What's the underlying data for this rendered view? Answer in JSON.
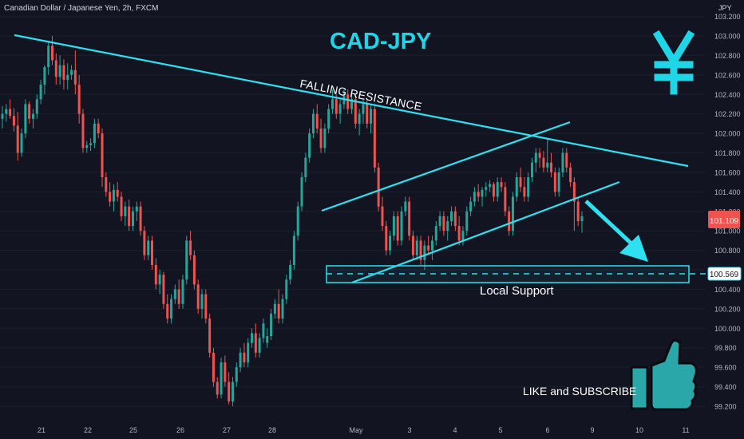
{
  "header": {
    "symbol_title": "Canadian Dollar / Japanese Yen, 2h, FXCM",
    "currency_label": "JPY"
  },
  "annotations": {
    "main_title": "CAD-JPY",
    "falling_resistance": "FALLING RESISTANCE",
    "local_support": "Local Support",
    "like_subscribe": "LIKE and SUBSCRIBE"
  },
  "price_tags": {
    "current": "101.109",
    "support_level": "100.569"
  },
  "colors": {
    "background": "#121521",
    "bull": "#26a69a",
    "bear": "#ef5350",
    "annotation": "#2ee0f0",
    "title": "#1fd6e6",
    "current_tag": "#ef5350",
    "axis_text": "#b2b5be"
  },
  "icons": {
    "yen": "yen-sign-icon",
    "thumb": "thumbs-up-icon"
  },
  "chart_data": {
    "type": "candlestick",
    "title": "",
    "y_ticks": [
      "99.200",
      "99.400",
      "99.600",
      "99.800",
      "100.000",
      "100.200",
      "100.400",
      "100.600",
      "100.800",
      "101.000",
      "101.200",
      "101.400",
      "101.600",
      "101.800",
      "102.000",
      "102.200",
      "102.400",
      "102.600",
      "102.800",
      "103.000",
      "103.200"
    ],
    "x_ticks": [
      "21",
      "22",
      "25",
      "26",
      "27",
      "28",
      "May",
      "3",
      "4",
      "5",
      "6",
      "9",
      "10",
      "11"
    ],
    "ylim": [
      99.15,
      103.25
    ],
    "current_price": 101.109,
    "support_level": 100.569,
    "series": [
      {
        "values": [
          [
            102.15,
            102.28,
            102.05,
            102.2
          ],
          [
            102.2,
            102.3,
            102.12,
            102.25
          ],
          [
            102.25,
            102.35,
            102.15,
            102.18
          ],
          [
            102.18,
            102.26,
            102.02,
            102.08
          ],
          [
            102.08,
            102.22,
            101.72,
            101.8
          ],
          [
            101.8,
            102.05,
            101.76,
            102.0
          ],
          [
            102.0,
            102.35,
            101.95,
            102.3
          ],
          [
            102.3,
            102.33,
            102.1,
            102.15
          ],
          [
            102.15,
            102.25,
            102.05,
            102.2
          ],
          [
            102.2,
            102.4,
            102.15,
            102.35
          ],
          [
            102.35,
            102.55,
            102.3,
            102.5
          ],
          [
            102.5,
            102.7,
            102.4,
            102.68
          ],
          [
            102.68,
            102.95,
            102.6,
            102.9
          ],
          [
            102.9,
            103.0,
            102.7,
            102.75
          ],
          [
            102.75,
            102.82,
            102.5,
            102.58
          ],
          [
            102.58,
            102.8,
            102.5,
            102.7
          ],
          [
            102.7,
            102.76,
            102.45,
            102.55
          ],
          [
            102.55,
            102.72,
            102.45,
            102.6
          ],
          [
            102.6,
            102.7,
            102.55,
            102.65
          ],
          [
            102.65,
            102.85,
            102.4,
            102.5
          ],
          [
            102.5,
            102.6,
            102.1,
            102.2
          ],
          [
            102.2,
            102.25,
            101.8,
            101.85
          ],
          [
            101.85,
            101.92,
            101.8,
            101.88
          ],
          [
            101.88,
            101.95,
            101.82,
            101.9
          ],
          [
            101.9,
            102.15,
            101.85,
            102.1
          ],
          [
            102.1,
            102.15,
            101.95,
            102.0
          ],
          [
            102.0,
            102.05,
            101.45,
            101.55
          ],
          [
            101.55,
            101.6,
            101.35,
            101.4
          ],
          [
            101.4,
            101.5,
            101.25,
            101.3
          ],
          [
            101.3,
            101.48,
            101.2,
            101.42
          ],
          [
            101.42,
            101.5,
            101.3,
            101.35
          ],
          [
            101.35,
            101.4,
            101.1,
            101.15
          ],
          [
            101.15,
            101.3,
            101.05,
            101.25
          ],
          [
            101.25,
            101.32,
            101.0,
            101.05
          ],
          [
            101.05,
            101.25,
            101.0,
            101.2
          ],
          [
            101.2,
            101.3,
            101.1,
            101.25
          ],
          [
            101.25,
            101.3,
            100.95,
            101.0
          ],
          [
            101.0,
            101.05,
            100.7,
            100.75
          ],
          [
            100.75,
            100.95,
            100.7,
            100.9
          ],
          [
            100.9,
            100.95,
            100.6,
            100.65
          ],
          [
            100.65,
            100.72,
            100.4,
            100.45
          ],
          [
            100.45,
            100.6,
            100.35,
            100.55
          ],
          [
            100.55,
            100.58,
            100.2,
            100.25
          ],
          [
            100.25,
            100.35,
            100.05,
            100.1
          ],
          [
            100.1,
            100.35,
            100.05,
            100.3
          ],
          [
            100.3,
            100.45,
            100.25,
            100.4
          ],
          [
            100.4,
            100.5,
            100.2,
            100.25
          ],
          [
            100.25,
            100.55,
            100.2,
            100.5
          ],
          [
            100.5,
            100.95,
            100.45,
            100.9
          ],
          [
            100.9,
            101.0,
            100.7,
            100.75
          ],
          [
            100.75,
            100.8,
            100.4,
            100.45
          ],
          [
            100.45,
            100.5,
            100.15,
            100.2
          ],
          [
            100.2,
            100.4,
            100.1,
            100.35
          ],
          [
            100.35,
            100.4,
            100.05,
            100.1
          ],
          [
            100.1,
            100.15,
            99.7,
            99.75
          ],
          [
            99.75,
            99.8,
            99.4,
            99.45
          ],
          [
            99.45,
            99.5,
            99.28,
            99.32
          ],
          [
            99.32,
            99.7,
            99.28,
            99.65
          ],
          [
            99.65,
            99.72,
            99.4,
            99.45
          ],
          [
            99.45,
            99.55,
            99.22,
            99.25
          ],
          [
            99.25,
            99.5,
            99.2,
            99.45
          ],
          [
            99.45,
            99.65,
            99.4,
            99.6
          ],
          [
            99.6,
            99.8,
            99.55,
            99.75
          ],
          [
            99.75,
            99.85,
            99.6,
            99.65
          ],
          [
            99.65,
            99.9,
            99.6,
            99.85
          ],
          [
            99.85,
            100.0,
            99.8,
            99.95
          ],
          [
            99.95,
            100.05,
            99.7,
            99.75
          ],
          [
            99.75,
            99.95,
            99.7,
            99.9
          ],
          [
            99.9,
            100.1,
            99.85,
            100.05
          ],
          [
            99.85,
            100.0,
            99.8,
            99.92
          ],
          [
            99.92,
            100.2,
            99.88,
            100.15
          ],
          [
            100.15,
            100.3,
            100.1,
            100.25
          ],
          [
            100.25,
            100.4,
            100.05,
            100.1
          ],
          [
            100.1,
            100.35,
            100.05,
            100.3
          ],
          [
            100.3,
            100.55,
            100.25,
            100.5
          ],
          [
            100.5,
            100.7,
            100.45,
            100.65
          ],
          [
            100.65,
            101.0,
            100.6,
            100.95
          ],
          [
            100.95,
            101.3,
            100.9,
            101.25
          ],
          [
            101.25,
            101.6,
            101.2,
            101.55
          ],
          [
            101.55,
            101.8,
            101.5,
            101.75
          ],
          [
            101.75,
            102.05,
            101.7,
            102.0
          ],
          [
            102.0,
            102.25,
            101.95,
            102.2
          ],
          [
            102.2,
            102.3,
            102.0,
            102.05
          ],
          [
            102.05,
            102.15,
            101.8,
            101.85
          ],
          [
            101.85,
            102.1,
            101.8,
            102.05
          ],
          [
            102.05,
            102.3,
            102.0,
            102.25
          ],
          [
            102.25,
            102.45,
            102.2,
            102.35
          ],
          [
            102.35,
            102.4,
            102.15,
            102.2
          ],
          [
            102.2,
            102.35,
            102.1,
            102.3
          ],
          [
            102.3,
            102.45,
            102.25,
            102.4
          ],
          [
            102.4,
            102.45,
            102.2,
            102.25
          ],
          [
            102.25,
            102.4,
            102.2,
            102.35
          ],
          [
            102.35,
            102.4,
            102.05,
            102.1
          ],
          [
            102.1,
            102.25,
            101.98,
            102.2
          ],
          [
            102.2,
            102.35,
            102.1,
            102.3
          ],
          [
            102.3,
            102.35,
            102.05,
            102.1
          ],
          [
            102.1,
            102.3,
            102.0,
            102.25
          ],
          [
            102.25,
            102.3,
            101.6,
            101.65
          ],
          [
            101.65,
            101.7,
            101.2,
            101.25
          ],
          [
            101.25,
            101.35,
            101.0,
            101.05
          ],
          [
            101.05,
            101.1,
            100.75,
            100.8
          ],
          [
            100.8,
            101.0,
            100.75,
            100.95
          ],
          [
            100.95,
            101.2,
            100.9,
            101.15
          ],
          [
            101.15,
            101.2,
            100.85,
            100.9
          ],
          [
            100.9,
            101.25,
            100.85,
            101.2
          ],
          [
            101.2,
            101.35,
            101.15,
            101.3
          ],
          [
            101.3,
            101.35,
            100.9,
            100.95
          ],
          [
            100.95,
            101.0,
            100.7,
            100.75
          ],
          [
            100.75,
            100.95,
            100.7,
            100.9
          ],
          [
            100.9,
            100.95,
            100.65,
            100.7
          ],
          [
            100.7,
            100.9,
            100.6,
            100.85
          ],
          [
            100.85,
            100.95,
            100.75,
            100.8
          ],
          [
            100.8,
            100.95,
            100.7,
            100.9
          ],
          [
            100.9,
            101.1,
            100.85,
            101.05
          ],
          [
            101.05,
            101.2,
            101.0,
            101.15
          ],
          [
            101.15,
            101.2,
            100.95,
            101.0
          ],
          [
            101.0,
            101.15,
            100.9,
            101.1
          ],
          [
            101.1,
            101.25,
            101.05,
            101.2
          ],
          [
            101.2,
            101.25,
            101.0,
            101.05
          ],
          [
            101.05,
            101.15,
            100.85,
            100.9
          ],
          [
            100.9,
            101.05,
            100.85,
            101.0
          ],
          [
            101.0,
            101.25,
            100.95,
            101.2
          ],
          [
            101.2,
            101.35,
            101.15,
            101.3
          ],
          [
            101.3,
            101.45,
            101.25,
            101.4
          ],
          [
            101.4,
            101.48,
            101.3,
            101.35
          ],
          [
            101.35,
            101.45,
            101.25,
            101.42
          ],
          [
            101.42,
            101.5,
            101.35,
            101.45
          ],
          [
            101.45,
            101.52,
            101.4,
            101.48
          ],
          [
            101.48,
            101.5,
            101.3,
            101.35
          ],
          [
            101.35,
            101.55,
            101.3,
            101.5
          ],
          [
            101.5,
            101.55,
            101.4,
            101.45
          ],
          [
            101.45,
            101.5,
            101.15,
            101.2
          ],
          [
            101.2,
            101.25,
            100.95,
            101.0
          ],
          [
            101.0,
            101.4,
            100.95,
            101.35
          ],
          [
            101.35,
            101.6,
            101.3,
            101.55
          ],
          [
            101.55,
            101.65,
            101.4,
            101.45
          ],
          [
            101.45,
            101.55,
            101.3,
            101.35
          ],
          [
            101.35,
            101.6,
            101.3,
            101.55
          ],
          [
            101.55,
            101.75,
            101.5,
            101.7
          ],
          [
            101.7,
            101.85,
            101.6,
            101.8
          ],
          [
            101.8,
            101.85,
            101.65,
            101.75
          ],
          [
            101.75,
            101.82,
            101.6,
            101.65
          ],
          [
            101.65,
            101.95,
            101.6,
            101.7
          ],
          [
            101.7,
            101.8,
            101.55,
            101.6
          ],
          [
            101.6,
            101.65,
            101.35,
            101.4
          ],
          [
            101.4,
            101.65,
            101.35,
            101.6
          ],
          [
            101.6,
            101.85,
            101.55,
            101.8
          ],
          [
            101.8,
            101.85,
            101.6,
            101.65
          ],
          [
            101.65,
            101.7,
            101.45,
            101.5
          ],
          [
            101.5,
            101.55,
            101.0,
            101.3
          ],
          [
            101.3,
            101.35,
            101.05,
            101.1
          ],
          [
            101.1,
            101.2,
            100.98,
            101.15
          ]
        ]
      }
    ]
  }
}
